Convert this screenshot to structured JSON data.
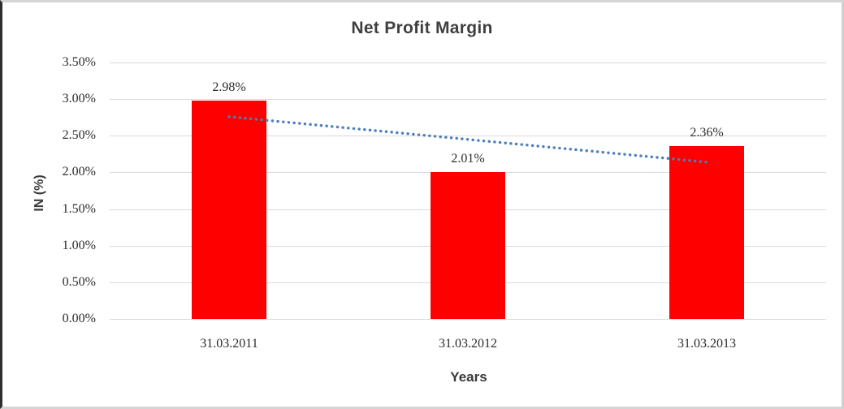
{
  "chart_data": {
    "type": "bar",
    "title": "Net Profit Margin",
    "xlabel": "Years",
    "ylabel": "IN (%)",
    "categories": [
      "31.03.2011",
      "31.03.2012",
      "31.03.2013"
    ],
    "values": [
      2.98,
      2.01,
      2.36
    ],
    "value_labels": [
      "2.98%",
      "2.01%",
      "2.36%"
    ],
    "ylim": [
      0,
      3.5
    ],
    "ytick_step": 0.5,
    "ytick_labels": [
      "0.00%",
      "0.50%",
      "1.00%",
      "1.50%",
      "2.00%",
      "2.50%",
      "3.00%",
      "3.50%"
    ],
    "grid": true,
    "legend": "none",
    "bar_color": "#ff0000",
    "gridline_color": "#d9d9d9",
    "trendline": {
      "type": "linear",
      "style": "dotted",
      "color": "#4a7ebb",
      "start_value": 2.76,
      "end_value": 2.14
    }
  }
}
